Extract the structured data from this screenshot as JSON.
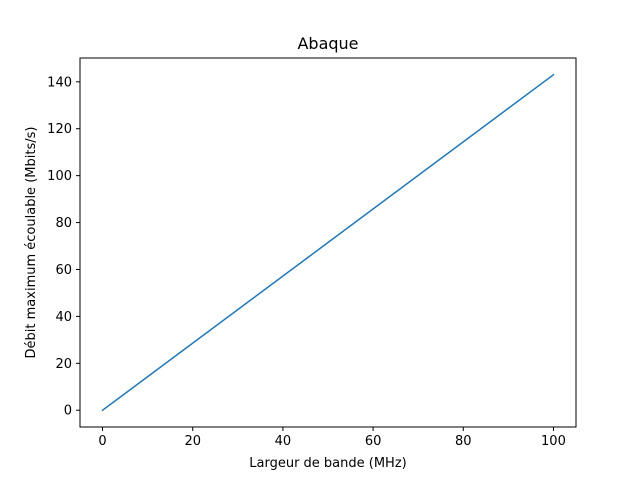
{
  "chart_data": {
    "type": "line",
    "title": "Abaque",
    "xlabel": "Largeur de bande (MHz)",
    "ylabel": "Débit maximum écoulable (Mbits/s)",
    "xlim": [
      -5,
      105
    ],
    "ylim": [
      -7.15,
      150.15
    ],
    "xticks": [
      0,
      20,
      40,
      60,
      80,
      100
    ],
    "yticks": [
      0,
      20,
      40,
      60,
      80,
      100,
      120,
      140
    ],
    "grid": false,
    "series": [
      {
        "color": "#1f77b4",
        "x": [
          0,
          100
        ],
        "y": [
          0,
          143
        ]
      }
    ]
  }
}
